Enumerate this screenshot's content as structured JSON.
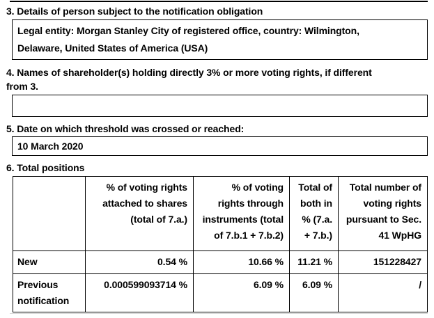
{
  "page": {
    "background_color": "#ffffff",
    "text_color": "#000000",
    "border_color": "#000000",
    "divider_color": "#d9d9d9"
  },
  "sections": {
    "s3": {
      "heading": "3. Details of person subject to the notification obligation",
      "box_lines": [
        "Legal entity: Morgan Stanley City of registered office, country: Wilmington,",
        "Delaware, United States of America (USA)"
      ]
    },
    "s4": {
      "heading_lines": [
        "4. Names of shareholder(s) holding directly 3% or more voting rights, if different",
        "from 3."
      ],
      "box_value": ""
    },
    "s5": {
      "heading": "5. Date on which threshold was crossed or reached:",
      "box_value": "10 March 2020"
    },
    "s6": {
      "heading": "6. Total positions"
    }
  },
  "table": {
    "col_headers": [
      {
        "lines": []
      },
      {
        "lines": [
          "% of voting rights",
          "attached to shares",
          "(total of 7.a.)"
        ]
      },
      {
        "lines": [
          "% of voting",
          "rights through",
          "instruments (total",
          "of 7.b.1 + 7.b.2)"
        ]
      },
      {
        "lines": [
          "Total of",
          "both in",
          "% (7.a.",
          "+ 7.b.)"
        ]
      },
      {
        "lines": [
          "Total number of",
          "voting rights",
          "pursuant to Sec.",
          "41 WpHG"
        ]
      }
    ],
    "rows": [
      {
        "label_lines": [
          "New"
        ],
        "values": [
          "0.54 %",
          "10.66 %",
          "11.21 %",
          "151228427"
        ]
      },
      {
        "label_lines": [
          "Previous",
          "notification"
        ],
        "values": [
          "0.000599093714 %",
          "6.09 %",
          "6.09 %",
          "/"
        ]
      }
    ]
  }
}
